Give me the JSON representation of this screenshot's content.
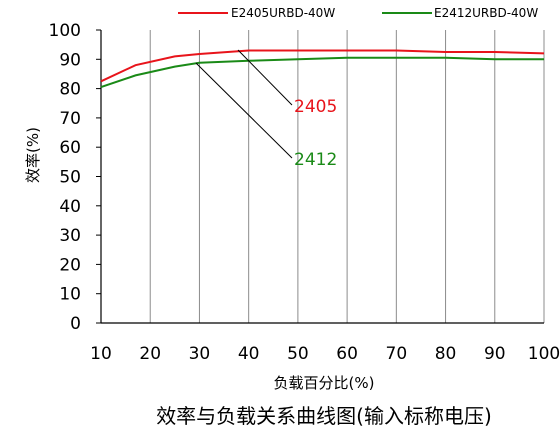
{
  "chart_data": {
    "type": "line",
    "title": "效率与负载关系曲线图(输入标称电压)",
    "xlabel": "负载百分比(%)",
    "ylabel": "效率(%)",
    "xlim": [
      10,
      100
    ],
    "ylim": [
      0,
      100
    ],
    "xticks": [
      10,
      20,
      30,
      40,
      50,
      60,
      70,
      80,
      90,
      100
    ],
    "yticks": [
      0,
      10,
      20,
      30,
      40,
      50,
      60,
      70,
      80,
      90,
      100
    ],
    "grid": "vertical",
    "legend_position": "top",
    "series": [
      {
        "name": "E2405URBD-40W",
        "color": "#e8141b",
        "x": [
          10,
          17,
          25,
          30,
          40,
          50,
          60,
          70,
          80,
          90,
          100
        ],
        "y": [
          82.5,
          88,
          91,
          91.8,
          93,
          93,
          93,
          93,
          92.5,
          92.5,
          92
        ],
        "annotation": "2405"
      },
      {
        "name": "E2412URBD-40W",
        "color": "#1a8a17",
        "x": [
          10,
          17,
          25,
          30,
          40,
          50,
          60,
          70,
          80,
          90,
          100
        ],
        "y": [
          80.5,
          84.5,
          87.5,
          88.8,
          89.5,
          90,
          90.5,
          90.5,
          90.5,
          90,
          90
        ],
        "annotation": "2412"
      }
    ]
  }
}
